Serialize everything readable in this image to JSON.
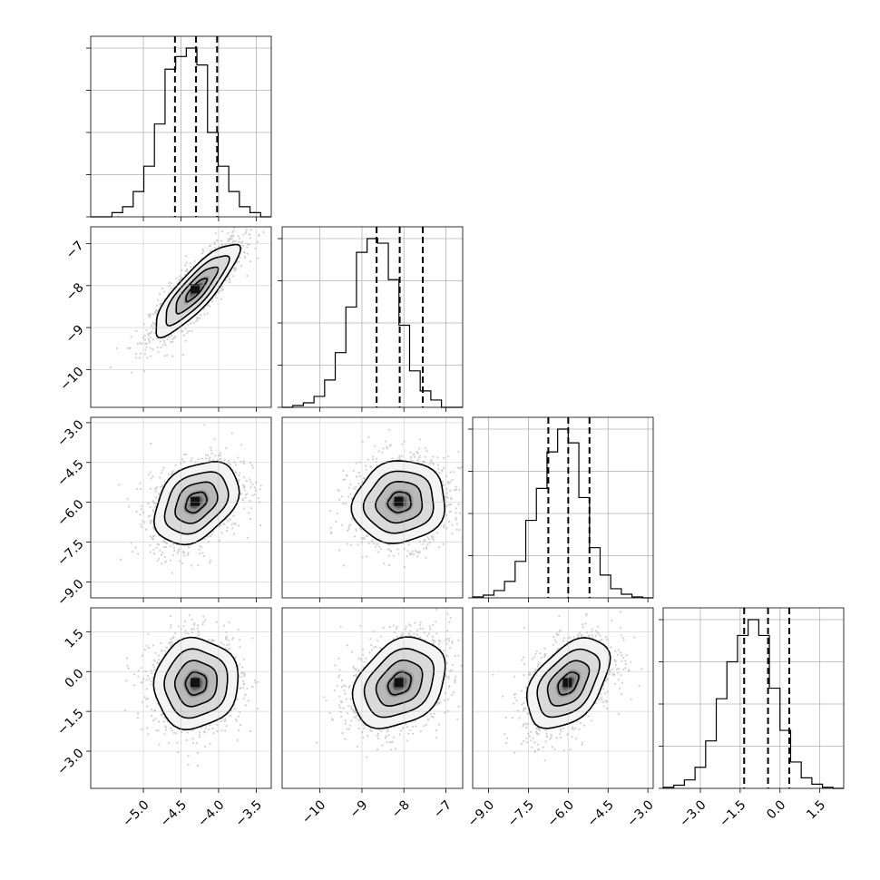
{
  "chart_data": {
    "type": "corner",
    "parameters": [
      {
        "id": "p1",
        "range": [
          -5.7,
          -3.3
        ],
        "ticks": [
          -5.0,
          -4.5,
          -4.0,
          -3.5
        ],
        "tick_labels": [
          "−5.0",
          "−4.5",
          "−4.0",
          "−3.5"
        ],
        "median": -4.3,
        "quantiles": [
          -4.58,
          -4.3,
          -4.02
        ],
        "hist_counts": [
          0,
          0,
          5,
          12,
          30,
          60,
          110,
          175,
          190,
          200,
          180,
          100,
          60,
          30,
          12,
          5,
          0
        ]
      },
      {
        "id": "p2",
        "range": [
          -10.9,
          -6.6
        ],
        "ticks": [
          -10,
          -9,
          -8,
          -7
        ],
        "tick_labels": [
          "−10",
          "−9",
          "−8",
          "−7"
        ],
        "median": -8.1,
        "quantiles": [
          -8.65,
          -8.1,
          -7.55
        ],
        "hist_counts": [
          0,
          2,
          5,
          12,
          30,
          60,
          110,
          170,
          185,
          180,
          140,
          90,
          40,
          18,
          8,
          0,
          0
        ]
      },
      {
        "id": "p3",
        "range": [
          -9.6,
          -2.8
        ],
        "ticks": [
          -9.0,
          -7.5,
          -6.0,
          -4.5,
          -3.0
        ],
        "tick_labels": [
          "−9.0",
          "−7.5",
          "−6.0",
          "−4.5",
          "−3.0"
        ],
        "median": -6.0,
        "quantiles": [
          -6.75,
          -6.0,
          -5.2
        ],
        "hist_counts": [
          1,
          3,
          8,
          18,
          40,
          85,
          120,
          160,
          185,
          170,
          110,
          55,
          25,
          10,
          4,
          1,
          0
        ]
      },
      {
        "id": "p4",
        "range": [
          -4.4,
          2.4
        ],
        "ticks": [
          -3.0,
          -1.5,
          0.0,
          1.5
        ],
        "tick_labels": [
          "−3.0",
          "−1.5",
          "0.0",
          "1.5"
        ],
        "median": -0.45,
        "quantiles": [
          -1.35,
          -0.45,
          0.35
        ],
        "hist_counts": [
          1,
          3,
          8,
          20,
          45,
          85,
          120,
          145,
          160,
          145,
          95,
          55,
          25,
          10,
          4,
          1,
          0
        ]
      }
    ],
    "pairs": [
      {
        "row": 1,
        "col": 0,
        "correlation": 0.85
      },
      {
        "row": 2,
        "col": 0,
        "correlation": 0.35
      },
      {
        "row": 2,
        "col": 1,
        "correlation": 0.08
      },
      {
        "row": 3,
        "col": 0,
        "correlation": 0.05
      },
      {
        "row": 3,
        "col": 1,
        "correlation": 0.3
      },
      {
        "row": 3,
        "col": 2,
        "correlation": 0.45
      }
    ],
    "contour_levels": [
      0.5,
      1.0,
      1.5,
      2.0
    ],
    "grid": true
  }
}
